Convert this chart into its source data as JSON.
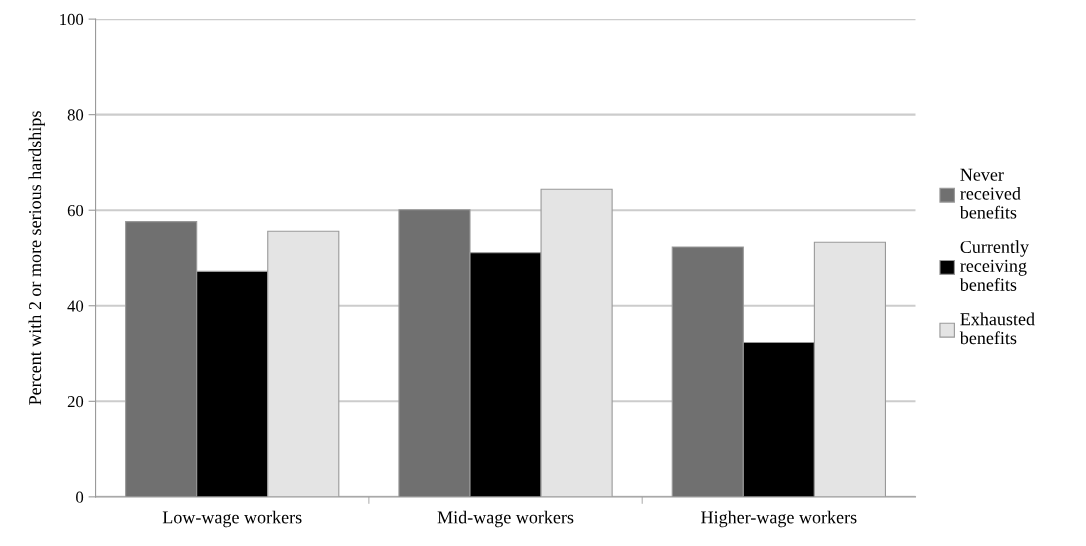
{
  "chart_data": {
    "type": "bar",
    "ylabel": "Percent with 2 or more serious hardships",
    "categories": [
      "Low-wage workers",
      "Mid-wage workers",
      "Higher-wage workers"
    ],
    "series": [
      {
        "name": "Never received benefits",
        "color": "#707070",
        "values": [
          57.6,
          60.1,
          52.3
        ]
      },
      {
        "name": "Currently receiving benefits",
        "color": "#000000",
        "values": [
          47.2,
          51.1,
          32.3
        ]
      },
      {
        "name": "Exhausted benefits",
        "color": "#e4e4e4",
        "values": [
          55.6,
          64.4,
          53.3
        ]
      }
    ],
    "ylim": [
      0,
      100
    ],
    "yticks": [
      0,
      20,
      40,
      60,
      80,
      100
    ],
    "grid": "y",
    "legend": "right"
  }
}
